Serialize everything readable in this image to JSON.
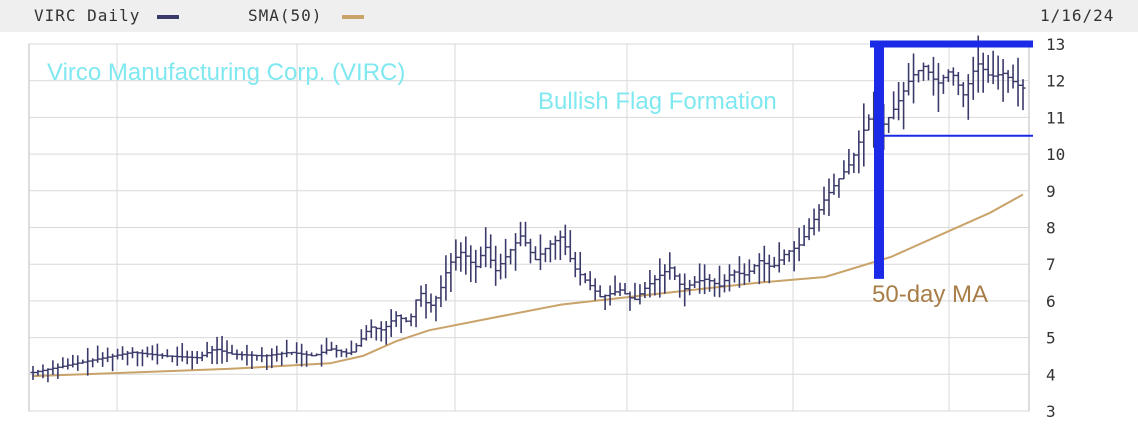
{
  "legend": {
    "series_label": "VIRC Daily",
    "series_color": "#3a3a6a",
    "sma_label": "SMA(50)",
    "sma_color": "#c9a36a",
    "date": "1/16/24"
  },
  "annotations": {
    "company": "Virco Manufacturing Corp. (VIRC)",
    "company_color": "#7fe8f0",
    "pattern": "Bullish Flag Formation",
    "pattern_color": "#7fe8f0",
    "ma_label": "50-day MA",
    "ma_label_color": "#a87d48",
    "flag_color": "#1a2ae6"
  },
  "chart_data": {
    "type": "line",
    "title": "Virco Manufacturing Corp. (VIRC)",
    "subtitle": "Bullish Flag Formation",
    "xlabel": "",
    "ylabel": "",
    "ylim": [
      3,
      13
    ],
    "y_ticks": [
      3,
      4,
      5,
      6,
      7,
      8,
      9,
      10,
      11,
      12,
      13
    ],
    "grid": true,
    "legend_position": "top",
    "n_bars": 200,
    "series": [
      {
        "name": "VIRC Daily",
        "style": "ohlc",
        "keyframes": [
          [
            0,
            4.05
          ],
          [
            16,
            4.35
          ],
          [
            30,
            4.6
          ],
          [
            40,
            4.5
          ],
          [
            50,
            4.45
          ],
          [
            55,
            4.7
          ],
          [
            60,
            4.55
          ],
          [
            70,
            4.5
          ],
          [
            78,
            4.6
          ],
          [
            85,
            4.5
          ],
          [
            90,
            4.7
          ],
          [
            96,
            4.55
          ],
          [
            99,
            4.9
          ],
          [
            102,
            5.3
          ],
          [
            106,
            5.2
          ],
          [
            110,
            5.6
          ],
          [
            114,
            5.4
          ],
          [
            117,
            6.3
          ],
          [
            120,
            5.8
          ],
          [
            123,
            6.2
          ],
          [
            126,
            7.0
          ],
          [
            130,
            7.35
          ],
          [
            134,
            6.9
          ],
          [
            137,
            7.5
          ],
          [
            140,
            6.8
          ],
          [
            144,
            7.3
          ],
          [
            148,
            7.8
          ],
          [
            152,
            7.1
          ],
          [
            156,
            7.5
          ],
          [
            160,
            7.75
          ],
          [
            164,
            6.9
          ],
          [
            168,
            6.5
          ],
          [
            172,
            6.1
          ],
          [
            178,
            6.3
          ],
          [
            182,
            6.0
          ],
          [
            186,
            6.4
          ],
          [
            190,
            6.7
          ],
          [
            193,
            6.9
          ],
          [
            197,
            6.3
          ],
          [
            200,
            6.5
          ],
          [
            204,
            6.6
          ],
          [
            208,
            6.4
          ],
          [
            212,
            6.8
          ],
          [
            216,
            6.7
          ],
          [
            220,
            7.1
          ],
          [
            224,
            6.9
          ],
          [
            228,
            7.3
          ],
          [
            232,
            7.5
          ],
          [
            236,
            8.1
          ],
          [
            240,
            8.8
          ],
          [
            244,
            9.3
          ],
          [
            248,
            9.8
          ],
          [
            251,
            10.5
          ],
          [
            254,
            11.1
          ],
          [
            258,
            10.8
          ],
          [
            262,
            11.4
          ],
          [
            266,
            12.1
          ],
          [
            270,
            12.4
          ],
          [
            274,
            11.9
          ],
          [
            278,
            12.3
          ],
          [
            282,
            11.6
          ],
          [
            286,
            12.5
          ],
          [
            290,
            12.1
          ],
          [
            294,
            12.2
          ],
          [
            298,
            11.9
          ],
          [
            300,
            11.8
          ]
        ]
      },
      {
        "name": "SMA(50)",
        "style": "line",
        "points": [
          [
            0,
            3.95
          ],
          [
            30,
            4.05
          ],
          [
            60,
            4.15
          ],
          [
            90,
            4.3
          ],
          [
            100,
            4.5
          ],
          [
            110,
            4.9
          ],
          [
            120,
            5.2
          ],
          [
            140,
            5.55
          ],
          [
            160,
            5.9
          ],
          [
            180,
            6.1
          ],
          [
            200,
            6.3
          ],
          [
            220,
            6.5
          ],
          [
            240,
            6.65
          ],
          [
            260,
            7.2
          ],
          [
            275,
            7.8
          ],
          [
            290,
            8.4
          ],
          [
            300,
            8.9
          ]
        ]
      }
    ],
    "overlays": {
      "flag_pole": {
        "from": 6.6,
        "to": 13.0
      },
      "flag_top": 13.0,
      "flag_bottom": 10.5,
      "ma_label": "50-day MA"
    }
  }
}
